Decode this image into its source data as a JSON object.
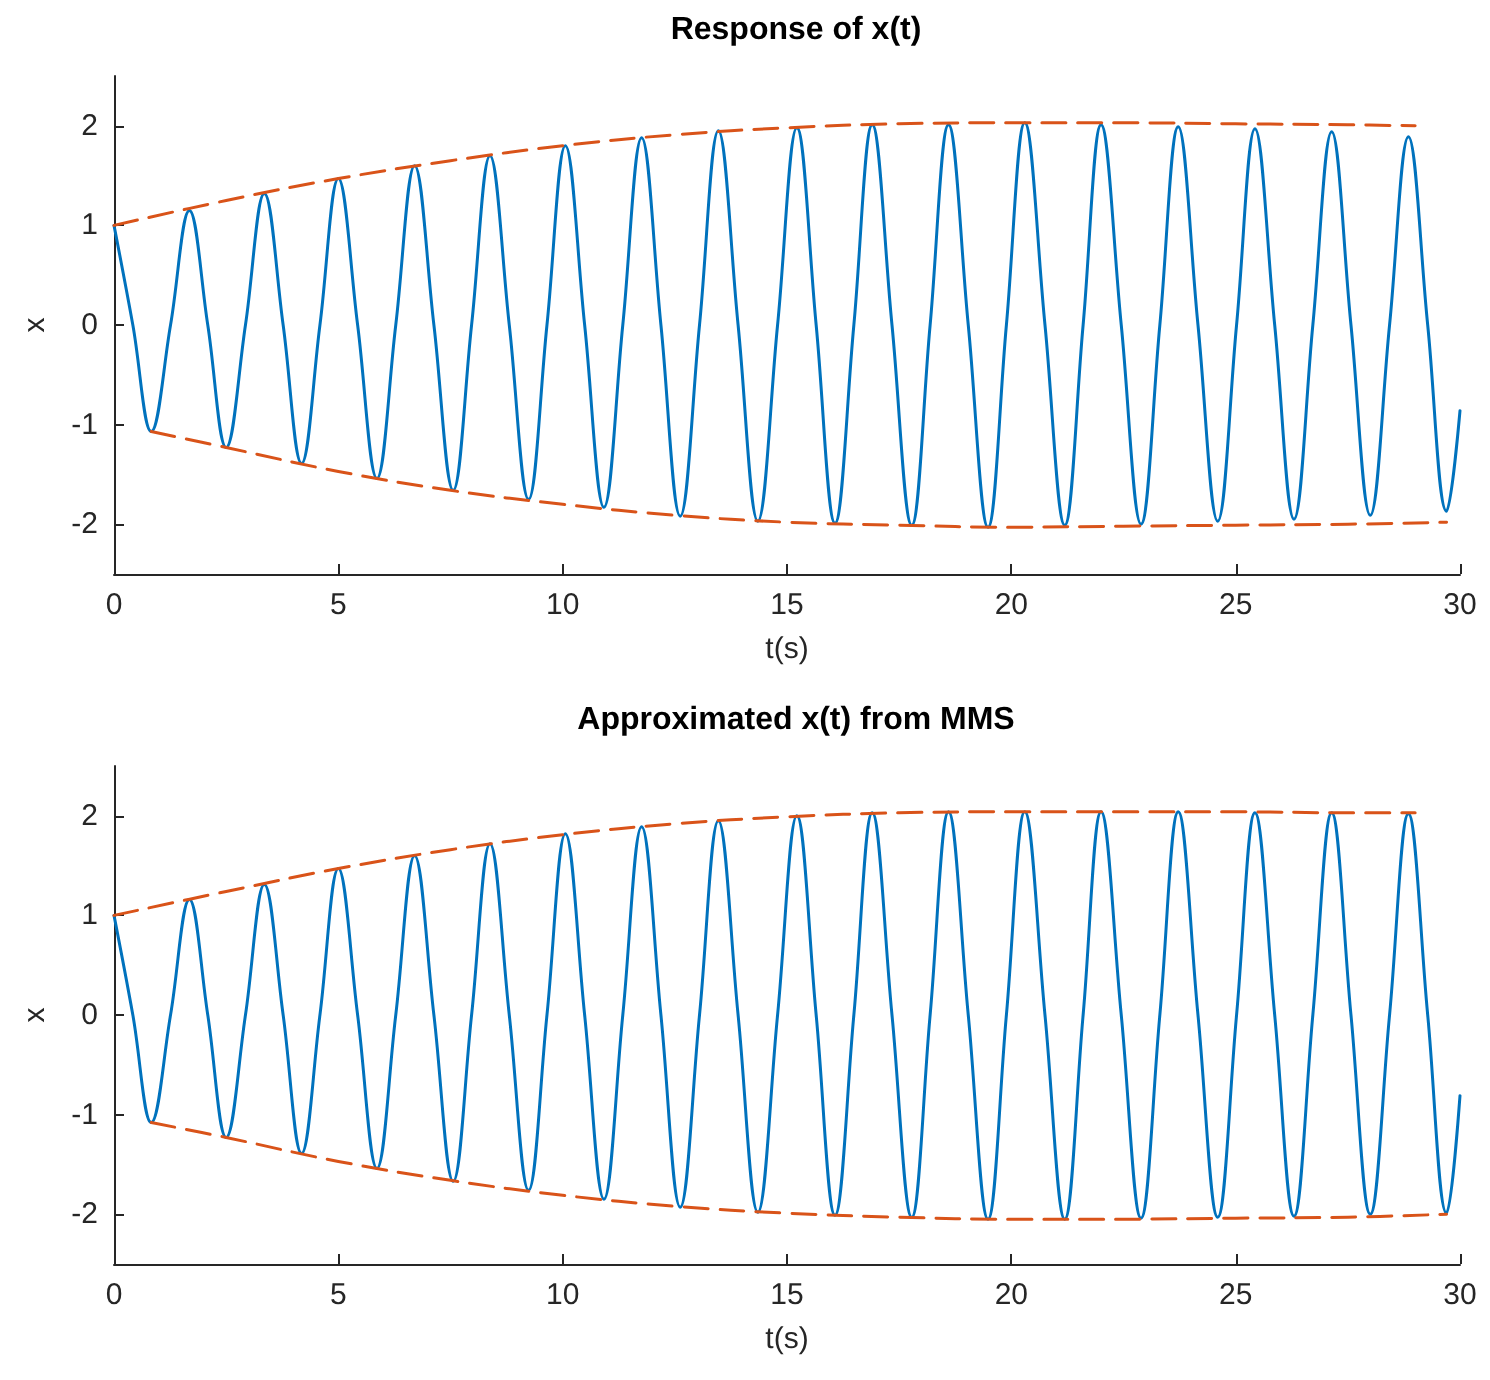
{
  "chart_data": [
    {
      "type": "line",
      "title": "Response of x(t)",
      "xlabel": "t(s)",
      "ylabel": "x",
      "xlim": [
        0,
        30
      ],
      "xticks": [
        0,
        5,
        10,
        15,
        20,
        25,
        30
      ],
      "ylim": [
        -2.5,
        2.5
      ],
      "yticks": [
        -2,
        -1,
        0,
        1,
        2
      ],
      "marker": "none",
      "series": [
        {
          "color": "#0072bd",
          "line_style": "solid",
          "x": [
            0,
            0.42,
            0.83,
            1.26,
            1.68,
            2.09,
            2.5,
            2.93,
            3.35,
            3.77,
            4.18,
            4.59,
            5.0,
            5.43,
            5.86,
            6.28,
            6.7,
            7.13,
            7.56,
            7.97,
            8.38,
            8.81,
            9.24,
            9.65,
            10.06,
            10.49,
            10.92,
            11.34,
            11.76,
            12.19,
            12.62,
            13.05,
            13.47,
            13.91,
            14.35,
            14.79,
            15.22,
            15.65,
            16.07,
            16.49,
            16.9,
            17.34,
            17.78,
            18.19,
            18.6,
            19.04,
            19.48,
            19.89,
            20.3,
            20.75,
            21.19,
            21.6,
            22.0,
            22.45,
            22.89,
            23.31,
            23.72,
            24.16,
            24.6,
            25.02,
            25.43,
            25.87,
            26.3,
            26.72,
            27.14,
            27.57,
            28.0,
            28.43,
            28.85,
            29.28,
            29.7,
            30
          ],
          "values": [
            1.0,
            0,
            -1.07,
            0,
            1.15,
            0,
            -1.23,
            0,
            1.32,
            0,
            -1.39,
            0,
            1.47,
            0,
            -1.54,
            0,
            1.6,
            0,
            -1.66,
            0,
            1.7,
            0,
            -1.75,
            0,
            1.8,
            0,
            -1.83,
            0,
            1.88,
            0,
            -1.92,
            0,
            1.95,
            0,
            -1.97,
            0,
            1.98,
            0,
            -1.99,
            0,
            2.01,
            0,
            -2.01,
            0,
            2.01,
            0,
            -2.03,
            0,
            2.03,
            0,
            -2.01,
            0,
            2.01,
            0,
            -2.0,
            0,
            1.99,
            0,
            -1.97,
            0,
            1.97,
            0,
            -1.95,
            0,
            1.94,
            0,
            -1.91,
            0,
            1.89,
            0,
            -1.87,
            -0.86
          ]
        },
        {
          "color": "#d95319",
          "line_style": "dashed",
          "x": [
            0,
            2.5,
            5,
            7.5,
            10,
            12.5,
            15,
            17.5,
            20,
            22.5,
            25,
            27.5,
            29
          ],
          "values": [
            1.0,
            1.25,
            1.47,
            1.65,
            1.8,
            1.91,
            1.98,
            2.02,
            2.03,
            2.03,
            2.02,
            2.01,
            2.0
          ]
        },
        {
          "color": "#d95319",
          "line_style": "dashed",
          "x": [
            0.83,
            2.5,
            5,
            7.5,
            10,
            12.5,
            15,
            17.5,
            20,
            22.5,
            25,
            27.5,
            29.7
          ],
          "values": [
            -1.07,
            -1.23,
            -1.47,
            -1.66,
            -1.8,
            -1.91,
            -1.98,
            -2.01,
            -2.03,
            -2.02,
            -2.01,
            -2.0,
            -1.98
          ]
        }
      ]
    },
    {
      "type": "line",
      "title": "Approximated x(t) from MMS",
      "xlabel": "t(s)",
      "ylabel": "x",
      "xlim": [
        0,
        30
      ],
      "xticks": [
        0,
        5,
        10,
        15,
        20,
        25,
        30
      ],
      "ylim": [
        -2.5,
        2.5
      ],
      "yticks": [
        -2,
        -1,
        0,
        1,
        2
      ],
      "marker": "none",
      "series": [
        {
          "color": "#0072bd",
          "line_style": "solid",
          "x": [
            0,
            0.42,
            0.83,
            1.26,
            1.68,
            2.09,
            2.5,
            2.93,
            3.35,
            3.77,
            4.18,
            4.59,
            5.0,
            5.43,
            5.86,
            6.28,
            6.7,
            7.13,
            7.56,
            7.97,
            8.38,
            8.81,
            9.24,
            9.65,
            10.06,
            10.49,
            10.92,
            11.34,
            11.76,
            12.19,
            12.62,
            13.05,
            13.47,
            13.91,
            14.35,
            14.79,
            15.22,
            15.65,
            16.07,
            16.49,
            16.9,
            17.34,
            17.78,
            18.19,
            18.6,
            19.04,
            19.48,
            19.89,
            20.3,
            20.75,
            21.19,
            21.6,
            22.0,
            22.45,
            22.89,
            23.31,
            23.72,
            24.16,
            24.6,
            25.02,
            25.43,
            25.87,
            26.3,
            26.72,
            27.14,
            27.57,
            28.0,
            28.43,
            28.85,
            29.28,
            29.7,
            30
          ],
          "values": [
            1.0,
            0,
            -1.08,
            0,
            1.16,
            0,
            -1.23,
            0,
            1.31,
            0,
            -1.39,
            0,
            1.47,
            0,
            -1.54,
            0,
            1.6,
            0,
            -1.67,
            0,
            1.72,
            0,
            -1.76,
            0,
            1.82,
            0,
            -1.85,
            0,
            1.89,
            0,
            -1.93,
            0,
            1.95,
            0,
            -1.98,
            0,
            2.0,
            0,
            -2.01,
            0,
            2.03,
            0,
            -2.03,
            0,
            2.04,
            0,
            -2.05,
            0,
            2.04,
            0,
            -2.05,
            0,
            2.04,
            0,
            -2.04,
            0,
            2.04,
            0,
            -2.03,
            0,
            2.03,
            0,
            -2.02,
            0,
            2.03,
            0,
            -2.0,
            0,
            2.02,
            0,
            -1.99,
            -0.81
          ]
        },
        {
          "color": "#d95319",
          "line_style": "dashed",
          "x": [
            0,
            2.5,
            5,
            7.5,
            10,
            12.5,
            15,
            17.5,
            20,
            22.5,
            25,
            27.5,
            29
          ],
          "values": [
            1.0,
            1.24,
            1.47,
            1.66,
            1.81,
            1.92,
            1.99,
            2.03,
            2.04,
            2.04,
            2.04,
            2.03,
            2.03
          ]
        },
        {
          "color": "#d95319",
          "line_style": "dashed",
          "x": [
            0.83,
            2.5,
            5,
            7.5,
            10,
            12.5,
            15,
            17.5,
            20,
            22.5,
            25,
            27.5,
            29.7
          ],
          "values": [
            -1.08,
            -1.23,
            -1.47,
            -1.66,
            -1.81,
            -1.92,
            -1.99,
            -2.03,
            -2.05,
            -2.05,
            -2.04,
            -2.03,
            -2.0
          ]
        }
      ]
    }
  ]
}
